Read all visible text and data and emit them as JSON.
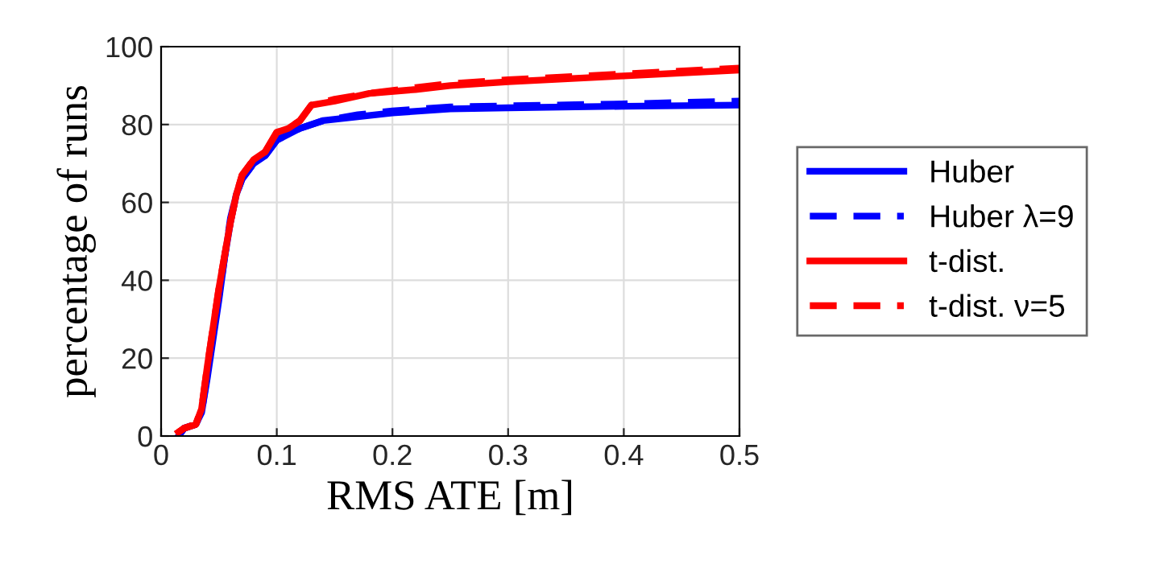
{
  "chart_data": {
    "type": "line",
    "xlabel": "RMS ATE [m]",
    "ylabel": "percentage of runs",
    "xlim": [
      0,
      0.5
    ],
    "ylim": [
      0,
      100
    ],
    "xticks": [
      0,
      0.1,
      0.2,
      0.3,
      0.4,
      0.5
    ],
    "yticks": [
      0,
      20,
      40,
      60,
      80,
      100
    ],
    "grid": true,
    "legend": "right",
    "marker": "none",
    "series": [
      {
        "name": "Huber",
        "color": "#0000ff",
        "line_style": "solid",
        "x": [
          0.015,
          0.02,
          0.03,
          0.035,
          0.04,
          0.045,
          0.05,
          0.055,
          0.06,
          0.065,
          0.07,
          0.08,
          0.09,
          0.1,
          0.12,
          0.14,
          0.17,
          0.2,
          0.25,
          0.3,
          0.4,
          0.5
        ],
        "values": [
          0,
          2,
          3,
          6,
          15,
          25,
          35,
          46,
          55,
          62,
          66,
          70,
          72,
          76,
          79,
          81,
          82,
          83,
          84,
          84.3,
          84.7,
          85
        ]
      },
      {
        "name": "Huber λ=9",
        "color": "#0000ff",
        "line_style": "dashed",
        "x": [
          0.015,
          0.02,
          0.03,
          0.035,
          0.04,
          0.045,
          0.05,
          0.055,
          0.06,
          0.065,
          0.07,
          0.08,
          0.09,
          0.1,
          0.12,
          0.14,
          0.17,
          0.2,
          0.25,
          0.3,
          0.4,
          0.5
        ],
        "values": [
          0,
          2,
          3,
          6,
          16,
          27,
          36,
          46,
          56,
          62,
          66,
          70,
          72,
          76,
          79,
          81,
          82.5,
          83.5,
          84.5,
          84.8,
          85.3,
          86
        ]
      },
      {
        "name": "t-dist.",
        "color": "#ff0000",
        "line_style": "solid",
        "x": [
          0.015,
          0.02,
          0.03,
          0.035,
          0.04,
          0.045,
          0.05,
          0.06,
          0.065,
          0.07,
          0.08,
          0.09,
          0.1,
          0.11,
          0.12,
          0.13,
          0.15,
          0.18,
          0.22,
          0.25,
          0.3,
          0.4,
          0.5
        ],
        "values": [
          1,
          2,
          3,
          7,
          18,
          28,
          38,
          55,
          62,
          67,
          71,
          73,
          78,
          79,
          81,
          85,
          86,
          88,
          89,
          90,
          91,
          92.5,
          94
        ]
      },
      {
        "name": "t-dist. ν=5",
        "color": "#ff0000",
        "line_style": "dashed",
        "x": [
          0.015,
          0.02,
          0.03,
          0.035,
          0.04,
          0.045,
          0.05,
          0.06,
          0.065,
          0.07,
          0.08,
          0.09,
          0.1,
          0.11,
          0.12,
          0.13,
          0.15,
          0.18,
          0.22,
          0.25,
          0.3,
          0.4,
          0.5
        ],
        "values": [
          1,
          2,
          3,
          7,
          18,
          28,
          38,
          55,
          62,
          67,
          71,
          73,
          78,
          79,
          81,
          85,
          86.5,
          88,
          89.5,
          90.5,
          91.5,
          93,
          94.5
        ]
      }
    ]
  }
}
